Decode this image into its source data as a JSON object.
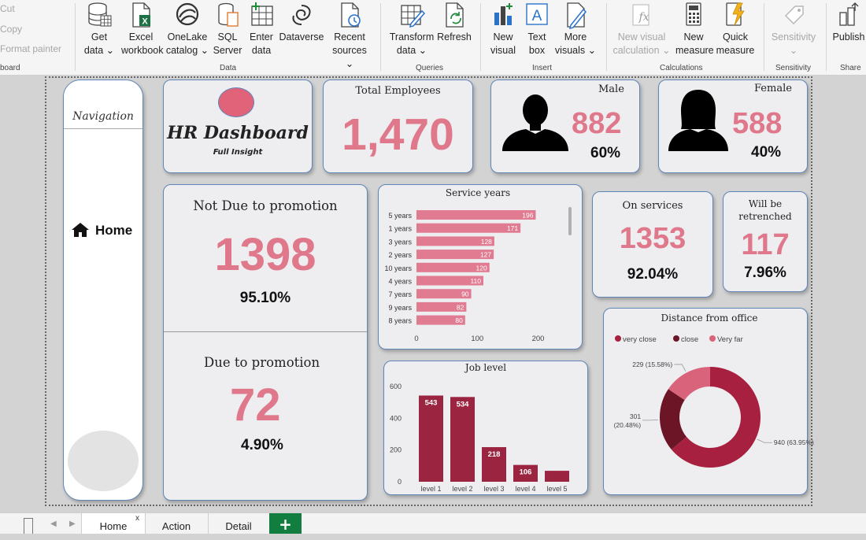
{
  "ribbon": {
    "clipboard": {
      "cut": "Cut",
      "copy": "Copy",
      "format_painter": "Format painter",
      "group": "board"
    },
    "data_group": {
      "get_data": [
        "Get",
        "data ⌄"
      ],
      "excel": [
        "Excel",
        "workbook"
      ],
      "onelake": [
        "OneLake",
        "catalog ⌄"
      ],
      "sql": [
        "SQL",
        "Server"
      ],
      "enter": [
        "Enter",
        "data"
      ],
      "dataverse": [
        "Dataverse"
      ],
      "recent": [
        "Recent",
        "sources ⌄"
      ],
      "group": "Data"
    },
    "queries": {
      "transform": [
        "Transform",
        "data ⌄"
      ],
      "refresh": [
        "Refresh"
      ],
      "group": "Queries"
    },
    "insert": {
      "new_visual": [
        "New",
        "visual"
      ],
      "text_box": [
        "Text",
        "box"
      ],
      "more_visuals": [
        "More",
        "visuals ⌄"
      ],
      "group": "Insert"
    },
    "calculations": {
      "new_visual_calc": [
        "New visual",
        "calculation ⌄"
      ],
      "new_measure": [
        "New",
        "measure"
      ],
      "quick_measure": [
        "Quick",
        "measure"
      ],
      "group": "Calculations"
    },
    "sensitivity": {
      "label": [
        "Sensitivity",
        "⌄"
      ],
      "group": "Sensitivity"
    },
    "share": {
      "publish": [
        "Publish"
      ],
      "group": "Share"
    }
  },
  "nav": {
    "title": "Navigation",
    "home": "Home"
  },
  "title_card": {
    "title": "HR Dashboard",
    "subtitle": "Full Insight"
  },
  "total_employees": {
    "label": "Total Employees",
    "value": "1,470"
  },
  "male": {
    "label": "Male",
    "value": "882",
    "pct": "60%"
  },
  "female": {
    "label": "Female",
    "value": "588",
    "pct": "40%"
  },
  "promotion": {
    "not_due_label": "Not Due to promotion",
    "not_due_value": "1398",
    "not_due_pct": "95.10%",
    "due_label": "Due to promotion",
    "due_value": "72",
    "due_pct": "4.90%"
  },
  "on_services": {
    "label": "On services",
    "value": "1353",
    "pct": "92.04%"
  },
  "retrenched": {
    "label": "Will be retrenched",
    "value": "117",
    "pct": "7.96%"
  },
  "chart_data": [
    {
      "type": "bar",
      "orientation": "horizontal",
      "title": "Service years",
      "categories": [
        "5 years",
        "1 years",
        "3 years",
        "2 years",
        "10 years",
        "4 years",
        "7 years",
        "9 years",
        "8 years"
      ],
      "values": [
        196,
        171,
        128,
        127,
        120,
        110,
        90,
        82,
        80
      ],
      "xlim": [
        0,
        220
      ],
      "xticks": [
        "0",
        "100",
        "200"
      ],
      "color": "#e07b91"
    },
    {
      "type": "bar",
      "title": "Job level",
      "categories": [
        "level 1",
        "level 2",
        "level 3",
        "level 4",
        "level 5"
      ],
      "values": [
        543,
        534,
        218,
        106,
        69
      ],
      "data_labels": [
        "543",
        "534",
        "218",
        "106",
        ""
      ],
      "ylim": [
        0,
        600
      ],
      "yticks": [
        "0",
        "200",
        "400",
        "600"
      ],
      "color": "#9b2440"
    },
    {
      "type": "pie",
      "donut": true,
      "title": "Distance from office",
      "legend_position": "top-left",
      "series": [
        {
          "name": "very close",
          "value": 940,
          "label": "940 (63.95%)",
          "color": "#a8203f"
        },
        {
          "name": "close",
          "value": 301,
          "label": "301 (20.48%)",
          "color": "#6b1527"
        },
        {
          "name": "Very far",
          "value": 229,
          "label": "229 (15.58%)",
          "color": "#d9637a"
        }
      ]
    }
  ],
  "tabs": {
    "home": "Home",
    "action": "Action",
    "detail": "Detail",
    "add": "+",
    "close": "x"
  }
}
